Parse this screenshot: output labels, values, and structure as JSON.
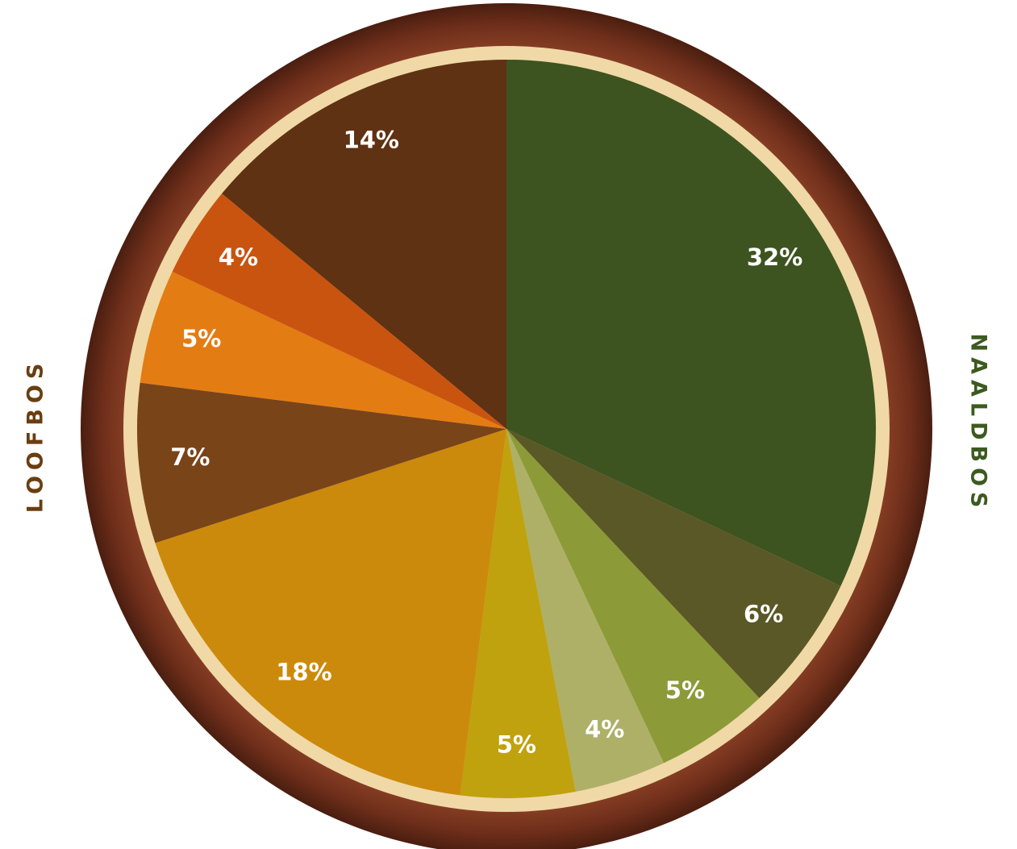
{
  "chart_data": {
    "type": "pie",
    "values": [
      32,
      6,
      5,
      4,
      5,
      18,
      7,
      5,
      4,
      14
    ],
    "value_labels": [
      "32%",
      "6%",
      "5%",
      "4%",
      "5%",
      "18%",
      "7%",
      "5%",
      "4%",
      "14%"
    ],
    "colors": [
      "#3d5420",
      "#5a5826",
      "#8c9a38",
      "#aeb068",
      "#bfa20e",
      "#cc8a0c",
      "#7a4419",
      "#e47c14",
      "#c95410",
      "#5e3212"
    ],
    "annotations": [
      {
        "text": "NAALDBOS",
        "color": "#3d5a20"
      },
      {
        "text": "LOOFBOS",
        "color": "#6a3e10"
      }
    ]
  }
}
